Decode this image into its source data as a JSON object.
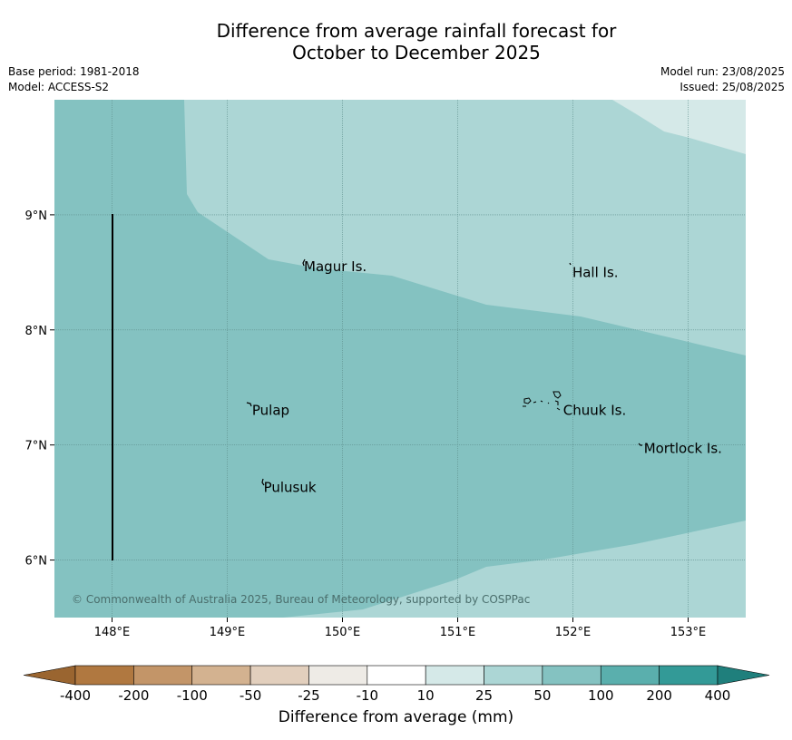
{
  "title": {
    "line1": "Difference from average rainfall forecast for",
    "line2": "October to December 2025"
  },
  "meta": {
    "base_period": "Base period: 1981-2018",
    "model": "Model: ACCESS-S2",
    "model_run": "Model run: 23/08/2025",
    "issued": "Issued: 25/08/2025"
  },
  "map": {
    "lon_range": [
      147.5,
      153.5
    ],
    "lat_range": [
      5.5,
      10.0
    ],
    "x_ticks": [
      {
        "lon": 148,
        "label": "148°E"
      },
      {
        "lon": 149,
        "label": "149°E"
      },
      {
        "lon": 150,
        "label": "150°E"
      },
      {
        "lon": 151,
        "label": "151°E"
      },
      {
        "lon": 152,
        "label": "152°E"
      },
      {
        "lon": 153,
        "label": "153°E"
      }
    ],
    "y_ticks": [
      {
        "lat": 9,
        "label": "9°N"
      },
      {
        "lat": 8,
        "label": "8°N"
      },
      {
        "lat": 7,
        "label": "7°N"
      },
      {
        "lat": 6,
        "label": "6°N"
      }
    ],
    "places": [
      {
        "name": "Magur Is.",
        "lon": 149.65,
        "lat": 8.55
      },
      {
        "name": "Hall Is.",
        "lon": 151.98,
        "lat": 8.5
      },
      {
        "name": "Pulap",
        "lon": 149.2,
        "lat": 7.3
      },
      {
        "name": "Chuuk Is.",
        "lon": 151.9,
        "lat": 7.3
      },
      {
        "name": "Mortlock Is.",
        "lon": 152.6,
        "lat": 6.97
      },
      {
        "name": "Pulusuk",
        "lon": 149.3,
        "lat": 6.63
      }
    ],
    "copyright": "© Commonwealth of Australia 2025, Bureau of Meteorology, supported by COSPPac"
  },
  "legend": {
    "label": "Difference from average (mm)",
    "ticks": [
      "-400",
      "-200",
      "-100",
      "-50",
      "-25",
      "-10",
      "10",
      "25",
      "50",
      "100",
      "200",
      "400"
    ],
    "colors": [
      "#b07840",
      "#c39568",
      "#d3b290",
      "#e2cfbd",
      "#eeebe6",
      "#ffffff",
      "#d5e9e8",
      "#acd6d5",
      "#84c2c1",
      "#5aafad",
      "#339a97"
    ],
    "extend_low_color": "#9a6530",
    "extend_high_color": "#1f7f7c"
  },
  "colors": {
    "category_10_25": "#d5e9e8",
    "category_25_50": "#acd6d5",
    "category_50_100": "#84c2c1"
  }
}
